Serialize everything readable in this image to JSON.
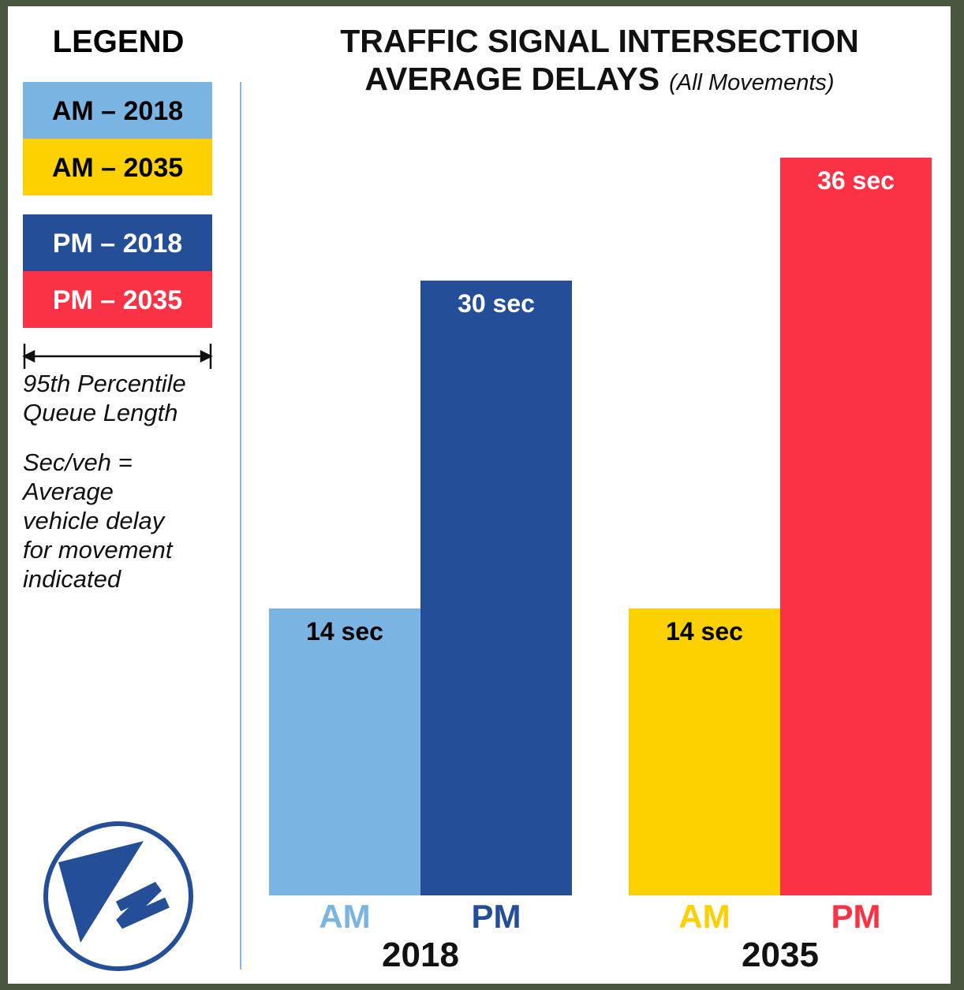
{
  "chart_data": {
    "type": "bar",
    "title": [
      "TRAFFIC SIGNAL INTERSECTION",
      "AVERAGE DELAYS"
    ],
    "subtitle": "(All Movements)",
    "groups": [
      {
        "label": "2018",
        "bars": [
          {
            "label": "AM",
            "color": "#7ab4e2",
            "label_color": "#000000",
            "value": 14,
            "value_label": "14 sec"
          },
          {
            "label": "PM",
            "color": "#244f98",
            "label_color": "#ffffff",
            "value": 30,
            "value_label": "30 sec"
          }
        ]
      },
      {
        "label": "2035",
        "bars": [
          {
            "label": "AM",
            "color": "#fdd100",
            "label_color": "#000000",
            "value": 14,
            "value_label": "14 sec"
          },
          {
            "label": "PM",
            "color": "#fb3245",
            "label_color": "#ffffff",
            "value": 36,
            "value_label": "36 sec"
          }
        ]
      }
    ],
    "legend": {
      "title": "LEGEND",
      "entries": [
        {
          "name": "AM – 2018",
          "color": "#7ab4e2",
          "text_color": "#000000"
        },
        {
          "name": "AM – 2035",
          "color": "#fdd100",
          "text_color": "#000000"
        },
        {
          "name": "PM – 2018",
          "color": "#244f98",
          "text_color": "#ffffff"
        },
        {
          "name": "PM – 2035",
          "color": "#fb3245",
          "text_color": "#ffffff"
        }
      ],
      "queue_note": [
        "95th Percentile",
        "Queue Length"
      ],
      "delay_note": [
        "Sec/veh =",
        "Average",
        "vehicle delay",
        "for movement",
        "indicated"
      ]
    }
  }
}
